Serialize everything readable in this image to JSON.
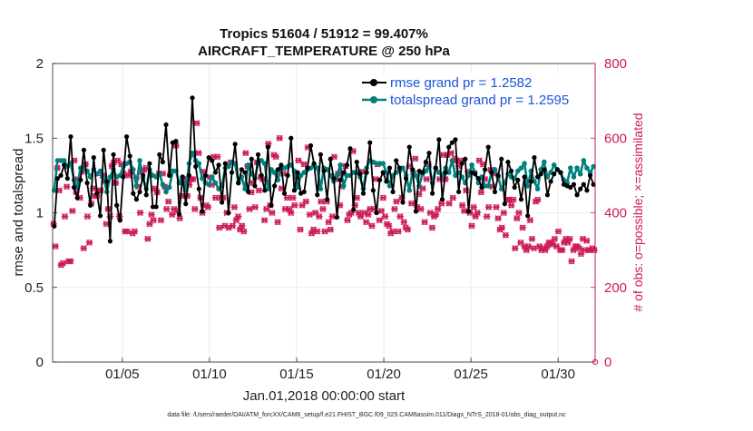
{
  "chart_data": {
    "type": "line",
    "title_line1": "Tropics 51604 / 51912 = 99.407%",
    "title_line2": "AIRCRAFT_TEMPERATURE @ 250 hPa",
    "xlabel": "Jan.01,2018 00:00:00 start",
    "ylabel_left": "rmse and totalspread",
    "ylabel_right": "# of obs: o=possible; ×=assimilated",
    "x_ticks": [
      "01/05",
      "01/10",
      "01/15",
      "01/20",
      "01/25",
      "01/30"
    ],
    "x_tick_positions": [
      5,
      10,
      15,
      20,
      25,
      30
    ],
    "xlim": [
      1,
      32.125
    ],
    "ylim_left": [
      0,
      2
    ],
    "yticks_left": [
      "0",
      "0.5",
      "1",
      "1.5",
      "2"
    ],
    "ylim_right": [
      0,
      800
    ],
    "yticks_right": [
      "0",
      "200",
      "400",
      "600",
      "800"
    ],
    "grid": true,
    "colors": {
      "rmse": "#000000",
      "spread": "#00807f",
      "obs": "#cc1a5a",
      "legend_text": "#1a55d9"
    },
    "legend": [
      {
        "label": "rmse grand pr = 1.2582",
        "color": "#000000"
      },
      {
        "label": "totalspread grand pr = 1.2595",
        "color": "#00807f"
      }
    ],
    "series": [
      {
        "name": "rmse",
        "axis": "left",
        "values": [
          0.91,
          1.23,
          1.25,
          1.32,
          1.23,
          1.51,
          1.17,
          1.1,
          1.22,
          1.42,
          1.2,
          1.05,
          1.37,
          1.13,
          0.98,
          1.42,
          1.21,
          0.81,
          1.39,
          1.05,
          0.95,
          1.24,
          1.51,
          1.38,
          1.13,
          1.09,
          1.14,
          1.25,
          1.12,
          1.33,
          1.04,
          1.04,
          1.39,
          1.34,
          1.59,
          1.25,
          1.47,
          1.48,
          0.99,
          1.24,
          1.06,
          1.25,
          1.77,
          1.31,
          1.16,
          1.01,
          1.25,
          1.37,
          1.35,
          1.27,
          1.32,
          1.07,
          1.33,
          1.0,
          1.27,
          1.46,
          1.2,
          1.29,
          1.27,
          1.14,
          1.36,
          1.18,
          1.39,
          1.25,
          1.15,
          1.44,
          1.05,
          1.18,
          1.29,
          1.32,
          1.13,
          1.25,
          1.5,
          1.15,
          1.27,
          1.13,
          1.14,
          1.3,
          1.45,
          1.33,
          1.12,
          1.39,
          1.28,
          1.09,
          1.36,
          1.23,
          0.97,
          1.22,
          1.27,
          1.32,
          1.43,
          1.02,
          1.34,
          1.26,
          1.13,
          1.27,
          1.47,
          1.15,
          1.0,
          1.22,
          1.27,
          1.21,
          1.3,
          1.14,
          1.35,
          1.3,
          1.07,
          1.23,
          1.44,
          1.29,
          1.01,
          1.28,
          1.27,
          1.34,
          1.4,
          1.13,
          1.3,
          1.49,
          1.09,
          1.27,
          1.44,
          1.47,
          1.49,
          1.14,
          1.33,
          1.36,
          1.01,
          1.27,
          1.26,
          1.23,
          1.17,
          1.29,
          1.44,
          1.27,
          1.14,
          1.25,
          1.36,
          1.06,
          1.34,
          1.28,
          1.17,
          1.22,
          1.09,
          1.24,
          0.98,
          1.21,
          1.37,
          1.24,
          1.26,
          1.29,
          1.12,
          1.21,
          1.26,
          1.29,
          1.27,
          1.19,
          1.18,
          1.17,
          1.19,
          1.12,
          1.16,
          1.19,
          1.15,
          1.25,
          1.19
        ]
      },
      {
        "name": "totalspread",
        "axis": "left",
        "values": [
          1.15,
          1.35,
          1.35,
          1.35,
          1.31,
          1.33,
          1.22,
          1.17,
          1.3,
          1.3,
          1.28,
          1.24,
          1.29,
          1.26,
          1.28,
          1.24,
          1.14,
          1.24,
          1.29,
          1.24,
          1.25,
          1.31,
          1.33,
          1.34,
          1.29,
          1.18,
          1.35,
          1.23,
          1.16,
          1.29,
          1.25,
          1.24,
          1.26,
          1.19,
          1.14,
          1.17,
          1.28,
          1.28,
          1.2,
          1.24,
          1.15,
          1.33,
          1.4,
          1.35,
          1.33,
          1.23,
          1.2,
          1.19,
          1.24,
          1.2,
          1.16,
          1.18,
          1.3,
          1.31,
          1.34,
          1.33,
          1.2,
          1.24,
          1.16,
          1.32,
          1.26,
          1.23,
          1.33,
          1.35,
          1.33,
          1.16,
          1.29,
          1.27,
          1.22,
          1.3,
          1.3,
          1.31,
          1.32,
          1.28,
          1.17,
          1.25,
          1.27,
          1.29,
          1.3,
          1.32,
          1.3,
          1.16,
          1.3,
          1.29,
          1.25,
          1.21,
          1.25,
          1.32,
          1.18,
          1.25,
          1.25,
          1.27,
          1.27,
          1.24,
          1.16,
          1.3,
          1.35,
          1.34,
          1.33,
          1.33,
          1.33,
          1.27,
          1.18,
          1.25,
          1.27,
          1.28,
          1.3,
          1.25,
          1.15,
          1.28,
          1.25,
          1.18,
          1.26,
          1.28,
          1.31,
          1.2,
          1.3,
          1.27,
          1.25,
          1.3,
          1.27,
          1.35,
          1.25,
          1.27,
          1.24,
          1.2,
          1.25,
          1.32,
          1.27,
          1.2,
          1.24,
          1.18,
          1.18,
          1.27,
          1.29,
          1.24,
          1.16,
          1.2,
          1.26,
          1.24,
          1.23,
          1.28,
          1.3,
          1.33,
          1.18,
          1.28,
          1.21,
          1.16,
          1.29,
          1.34,
          1.24,
          1.27,
          1.32,
          1.29,
          1.27,
          1.22,
          1.2,
          1.3,
          1.24,
          1.3,
          1.26,
          1.35,
          1.3,
          1.27,
          1.31
        ]
      },
      {
        "name": "obs_assimilated",
        "axis": "right",
        "values": [
          370,
          310,
          520,
          460,
          260,
          265,
          390,
          470,
          270,
          270,
          405,
          540,
          455,
          490,
          440,
          510,
          305,
          530,
          390,
          320,
          425,
          465,
          445,
          445,
          460,
          460,
          500,
          485,
          370,
          410,
          390,
          525,
          535,
          480,
          540,
          390,
          530,
          505,
          350,
          350,
          500,
          510,
          345,
          350,
          495,
          470,
          400,
          510,
          515,
          520,
          330,
          370,
          395,
          380,
          465,
          455,
          505,
          380,
          505,
          470,
          410,
          430,
          505,
          395,
          410,
          580,
          405,
          385,
          445,
          490,
          480,
          445,
          475,
          490,
          490,
          410,
          640,
          560,
          440,
          400,
          510,
          420,
          415,
          495,
          475,
          550,
          440,
          550,
          360,
          440,
          440,
          365,
          400,
          360,
          535,
          365,
          415,
          380,
          390,
          355,
          365,
          350,
          560,
          525,
          410,
          455,
          480,
          415,
          535,
          460,
          495,
          490,
          380,
          410,
          585,
          420,
          400,
          555,
          550,
          375,
          600,
          465,
          505,
          410,
          440,
          410,
          400,
          440,
          420,
          495,
          540,
          355,
          420,
          530,
          430,
          575,
          395,
          345,
          355,
          400,
          350,
          390,
          430,
          410,
          350,
          430,
          375,
          355,
          390,
          550,
          490,
          505,
          420,
          470,
          505,
          525,
          380,
          395,
          400,
          565,
          420,
          440,
          400,
          390,
          510,
          400,
          375,
          395,
          410,
          365,
          410,
          490,
          530,
          380,
          405,
          440,
          390,
          370,
          365,
          345,
          350,
          410,
          430,
          350,
          390,
          440,
          375,
          360,
          355,
          525,
          425,
          505,
          545,
          415,
          450,
          410,
          465,
          375,
          490,
          530,
          400,
          360,
          390,
          395,
          410,
          490,
          425,
          555,
          490,
          555,
          425,
          560,
          440,
          545,
          540,
          525,
          540,
          420,
          405,
          460,
          510,
          400,
          365,
          415,
          390,
          400,
          540,
          455,
          530,
          490,
          390,
          415,
          515,
          470,
          505,
          415,
          385,
          355,
          360,
          400,
          340,
          435,
          435,
          420,
          435,
          305,
          385,
          400,
          320,
          360,
          310,
          300,
          310,
          380,
          330,
          305,
          430,
          435,
          310,
          300,
          305,
          300,
          310,
          320,
          320,
          315,
          330,
          310,
          350,
          300,
          300,
          320,
          330,
          320,
          330,
          270,
          300,
          310,
          310,
          305,
          290,
          330,
          300,
          325,
          300,
          300,
          305,
          300
        ]
      },
      {
        "name": "obs_possible",
        "axis": "right",
        "values": [
          370,
          310,
          520,
          460,
          260,
          265,
          390,
          470,
          270,
          270,
          405,
          540,
          455,
          490,
          440,
          510,
          305,
          530,
          390,
          320,
          425,
          465,
          445,
          445,
          460,
          460,
          500,
          485,
          370,
          410,
          390,
          525,
          535,
          480,
          540,
          390,
          530,
          505,
          350,
          350,
          500,
          510,
          345,
          350,
          495,
          470,
          400,
          510,
          515,
          520,
          330,
          370,
          395,
          380,
          465,
          455,
          505,
          380,
          505,
          470,
          410,
          430,
          505,
          395,
          410,
          580,
          405,
          385,
          445,
          490,
          480,
          445,
          475,
          490,
          490,
          410,
          640,
          560,
          440,
          400,
          510,
          420,
          415,
          495,
          475,
          550,
          440,
          550,
          360,
          440,
          440,
          365,
          400,
          360,
          535,
          365,
          415,
          380,
          390,
          355,
          365,
          350,
          560,
          525,
          410,
          455,
          480,
          415,
          535,
          460,
          495,
          490,
          380,
          410,
          585,
          420,
          400,
          555,
          550,
          375,
          600,
          465,
          505,
          410,
          440,
          410,
          400,
          440,
          420,
          495,
          540,
          355,
          420,
          530,
          430,
          575,
          395,
          345,
          355,
          400,
          350,
          390,
          430,
          410,
          350,
          430,
          375,
          355,
          390,
          550,
          490,
          505,
          420,
          470,
          505,
          525,
          380,
          395,
          400,
          565,
          420,
          440,
          400,
          390,
          510,
          400,
          375,
          395,
          410,
          365,
          410,
          490,
          530,
          380,
          405,
          440,
          390,
          370,
          365,
          345,
          350,
          410,
          430,
          350,
          390,
          440,
          375,
          360,
          355,
          525,
          425,
          505,
          545,
          415,
          450,
          410,
          465,
          375,
          490,
          530,
          400,
          360,
          390,
          395,
          410,
          490,
          425,
          555,
          490,
          555,
          425,
          560,
          440,
          545,
          540,
          525,
          540,
          420,
          405,
          460,
          510,
          400,
          365,
          415,
          390,
          400,
          540,
          455,
          530,
          490,
          390,
          415,
          515,
          470,
          505,
          415,
          385,
          355,
          360,
          400,
          340,
          435,
          435,
          420,
          435,
          305,
          385,
          400,
          320,
          360,
          310,
          300,
          310,
          380,
          330,
          305,
          430,
          435,
          310,
          300,
          305,
          300,
          310,
          320,
          320,
          315,
          330,
          310,
          350,
          300,
          300,
          320,
          330,
          320,
          330,
          270,
          300,
          310,
          310,
          305,
          290,
          330,
          300,
          325,
          300,
          300,
          305,
          300
        ]
      }
    ],
    "footnote": "data file: /Users/raeder/DAI/ATM_forcXX/CAM6_setup/f.e21.FHIST_BGC.f09_025.CAM6assim.011/Diags_NTrS_2018-01/obs_diag_output.nc"
  }
}
